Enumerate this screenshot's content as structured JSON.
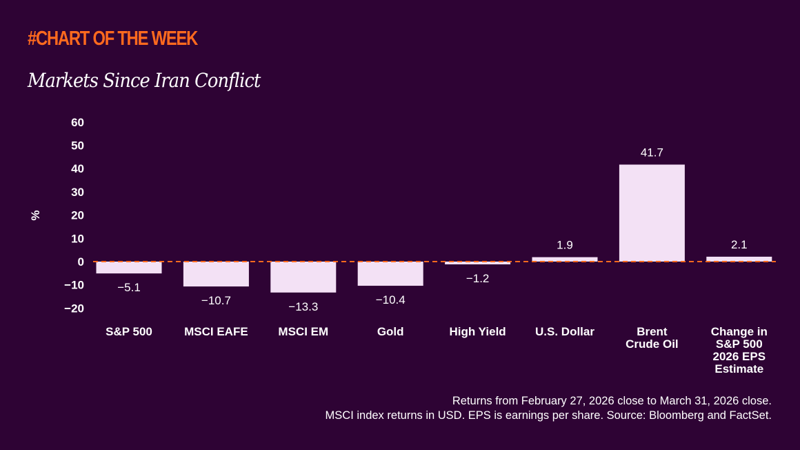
{
  "header": {
    "kicker": "#CHART OF THE WEEK",
    "title": "Markets Since Iran Conflict"
  },
  "colors": {
    "background": "#2e0334",
    "bar": "#f3e1f5",
    "accent": "#ff6a1e",
    "text": "#ffffff"
  },
  "chart_data": {
    "type": "bar",
    "title": "Markets Since Iran Conflict",
    "ylabel": "%",
    "ylim": [
      -20,
      60
    ],
    "yticks": [
      60,
      50,
      40,
      30,
      20,
      10,
      0,
      -10,
      -20
    ],
    "ytick_labels": [
      "60",
      "50",
      "40",
      "30",
      "20",
      "10",
      "0",
      "−10",
      "−20"
    ],
    "grid": false,
    "zero_line": "dashed",
    "categories": [
      "S&P 500",
      "MSCI EAFE",
      "MSCI EM",
      "Gold",
      "High Yield",
      "U.S. Dollar",
      "Brent Crude Oil",
      "Change in S&P 500 2026 EPS Estimate"
    ],
    "category_lines": [
      [
        "S&P 500"
      ],
      [
        "MSCI EAFE"
      ],
      [
        "MSCI EM"
      ],
      [
        "Gold"
      ],
      [
        "High Yield"
      ],
      [
        "U.S. Dollar"
      ],
      [
        "Brent",
        "Crude Oil"
      ],
      [
        "Change in",
        "S&P 500",
        "2026 EPS",
        "Estimate"
      ]
    ],
    "values": [
      -5.1,
      -10.7,
      -13.3,
      -10.4,
      -1.2,
      1.9,
      41.7,
      2.1
    ],
    "data_labels": [
      "−5.1",
      "−10.7",
      "−13.3",
      "−10.4",
      "−1.2",
      "1.9",
      "41.7",
      "2.1"
    ]
  },
  "footnotes": [
    "Returns from February 27, 2026 close to March 31, 2026 close.",
    "MSCI index returns in USD. EPS is earnings per share. Source: Bloomberg and FactSet."
  ]
}
